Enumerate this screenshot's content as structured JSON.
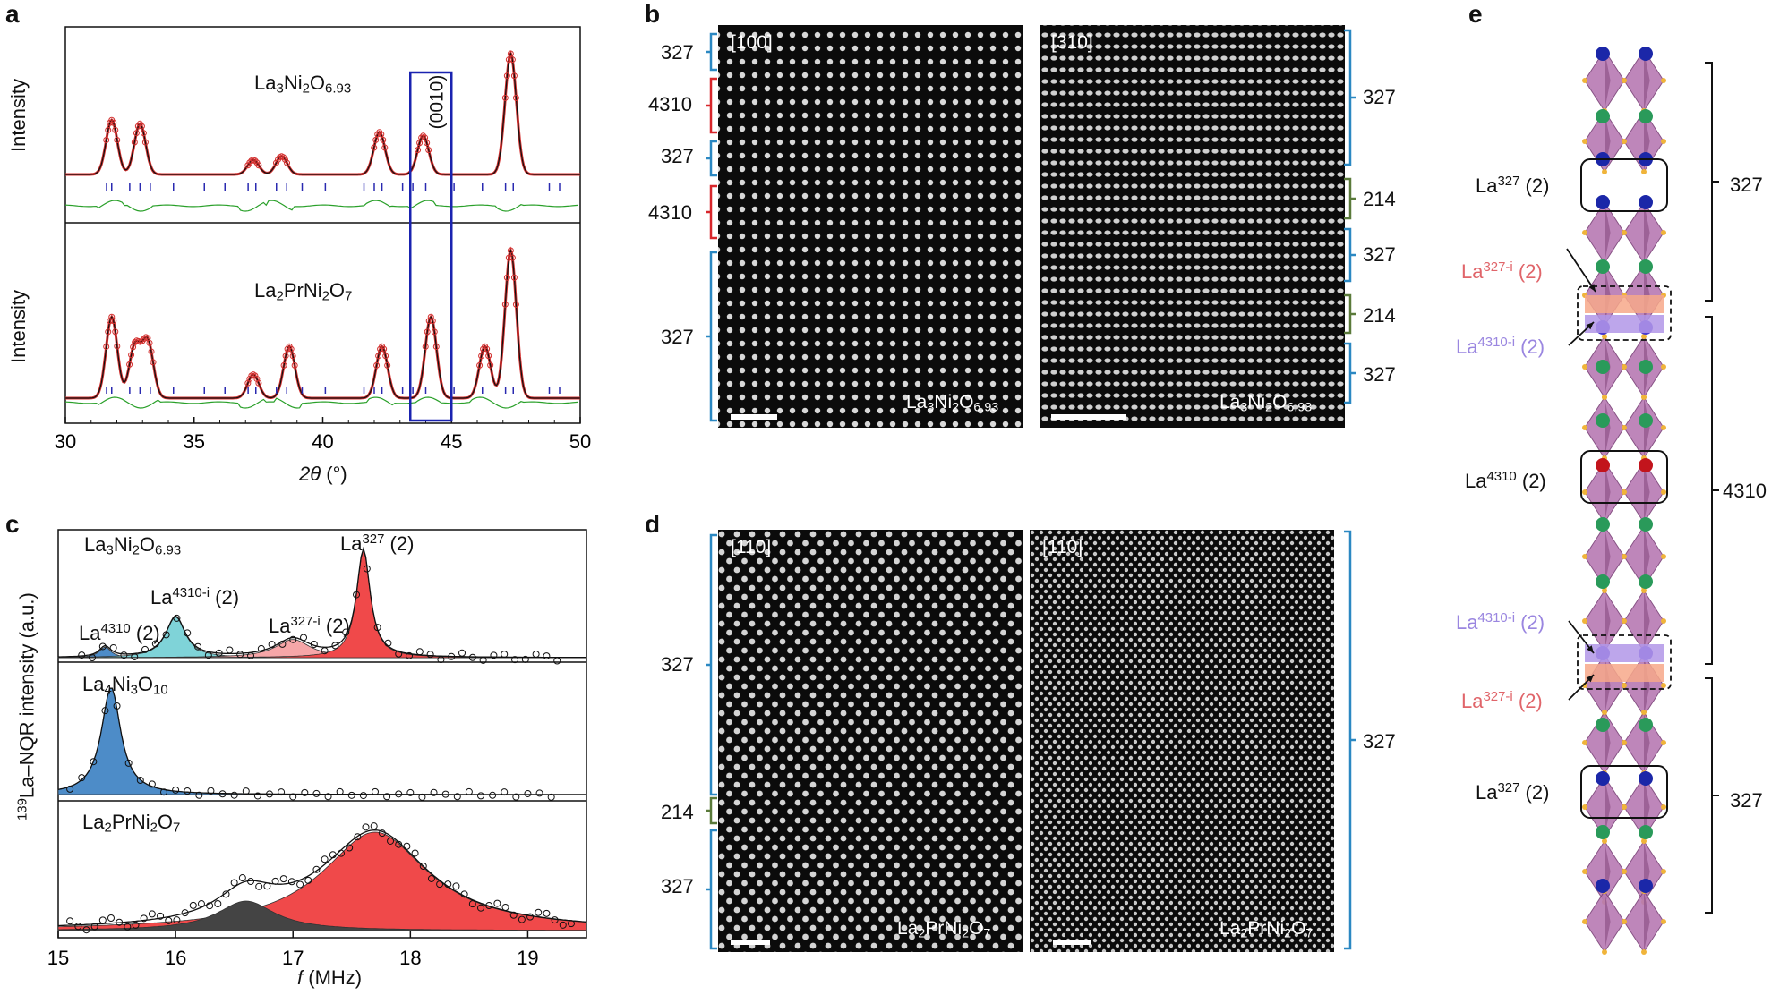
{
  "panel_labels": {
    "a": "a",
    "b": "b",
    "c": "c",
    "d": "d",
    "e": "e"
  },
  "panel_a": {
    "top_sample": "La3Ni2O6.93",
    "bottom_sample": "La2PrNi2O7",
    "ylabel": "Intensity",
    "xlabel_sym": "2θ",
    "xlabel_unit": "(°)",
    "box_label": "(0010)",
    "xticks": [
      "30",
      "35",
      "40",
      "45",
      "50"
    ]
  },
  "panel_b": {
    "left_zone": "[100]",
    "right_zone": "[310]",
    "left_sample": "La3Ni2O6.93",
    "right_sample": "La3Ni2O6.93",
    "left_brackets": [
      "327",
      "4310",
      "327",
      "4310",
      "327"
    ],
    "right_brackets": [
      "327",
      "214",
      "327",
      "214",
      "327"
    ]
  },
  "panel_c": {
    "ylabel_sup": "139",
    "ylabel": "La–NQR intensity (a.u.)",
    "xlabel_sym": "f",
    "xlabel_unit": "(MHz)",
    "xticks": [
      "15",
      "16",
      "17",
      "18",
      "19"
    ],
    "sub1_sample": "La3Ni2O6.93",
    "sub2_sample": "La4Ni3O10",
    "sub3_sample": "La2PrNi2O7",
    "peak_labels": [
      "La4310 (2)",
      "La4310-i (2)",
      "La327-i (2)",
      "La327 (2)"
    ]
  },
  "panel_d": {
    "left_zone": "[110]",
    "right_zone": "[110]",
    "left_sample": "La2PrNi2O7",
    "right_sample": "La2PrNi2O7",
    "left_brackets": [
      "327",
      "214",
      "327"
    ],
    "right_brackets": [
      "327"
    ]
  },
  "panel_e": {
    "labels": [
      "La327 (2)",
      "La327-i (2)",
      "La4310-i (2)",
      "La4310 (2)",
      "La4310-i (2)",
      "La327-i (2)",
      "La327 (2)"
    ],
    "right_brackets": [
      "327",
      "4310",
      "327"
    ]
  },
  "colors": {
    "data": "#d3302f",
    "fit": "#111111",
    "diff": "#2aa02a",
    "ticks": "#2a2ab0",
    "box": "#1a23b0",
    "red_fill": "#f0494a",
    "teal_fill": "#7fd3d8",
    "pink_fill": "#f6a6a8",
    "blue_fill": "#4d8cc8",
    "dark_fill": "#444444",
    "bracket_blue": "#2b88c2",
    "bracket_red": "#d7262b",
    "bracket_green": "#5a7a3a"
  },
  "chart_data": [
    {
      "type": "line",
      "title": "",
      "xlabel": "2θ (°)",
      "ylabel": "Intensity",
      "xlim": [
        30,
        50
      ],
      "series": [
        {
          "name": "La3Ni2O6.93",
          "peaks": [
            [
              31.8,
              0.45
            ],
            [
              32.9,
              0.42
            ],
            [
              37.3,
              0.12
            ],
            [
              38.4,
              0.15
            ],
            [
              42.2,
              0.35
            ],
            [
              43.9,
              0.32
            ],
            [
              47.3,
              1.0
            ]
          ]
        },
        {
          "name": "La2PrNi2O7",
          "peaks": [
            [
              31.8,
              0.55
            ],
            [
              32.7,
              0.35
            ],
            [
              33.2,
              0.38
            ],
            [
              37.3,
              0.16
            ],
            [
              38.7,
              0.35
            ],
            [
              42.3,
              0.35
            ],
            [
              44.2,
              0.55
            ],
            [
              46.3,
              0.35
            ],
            [
              47.3,
              1.0
            ]
          ]
        }
      ]
    },
    {
      "type": "area",
      "title": "",
      "xlabel": "f (MHz)",
      "ylabel": "139La–NQR intensity (a.u.)",
      "xlim": [
        15,
        19.5
      ],
      "series": [
        {
          "name": "La3Ni2O6.93",
          "peaks": [
            [
              15.4,
              0.15
            ],
            [
              16.0,
              0.45
            ],
            [
              17.0,
              0.2
            ],
            [
              17.6,
              1.0
            ]
          ]
        },
        {
          "name": "La4Ni3O10",
          "peaks": [
            [
              15.45,
              1.0
            ]
          ]
        },
        {
          "name": "La2PrNi2O7",
          "peaks": [
            [
              16.6,
              0.3
            ],
            [
              17.7,
              1.0
            ]
          ]
        }
      ]
    }
  ]
}
